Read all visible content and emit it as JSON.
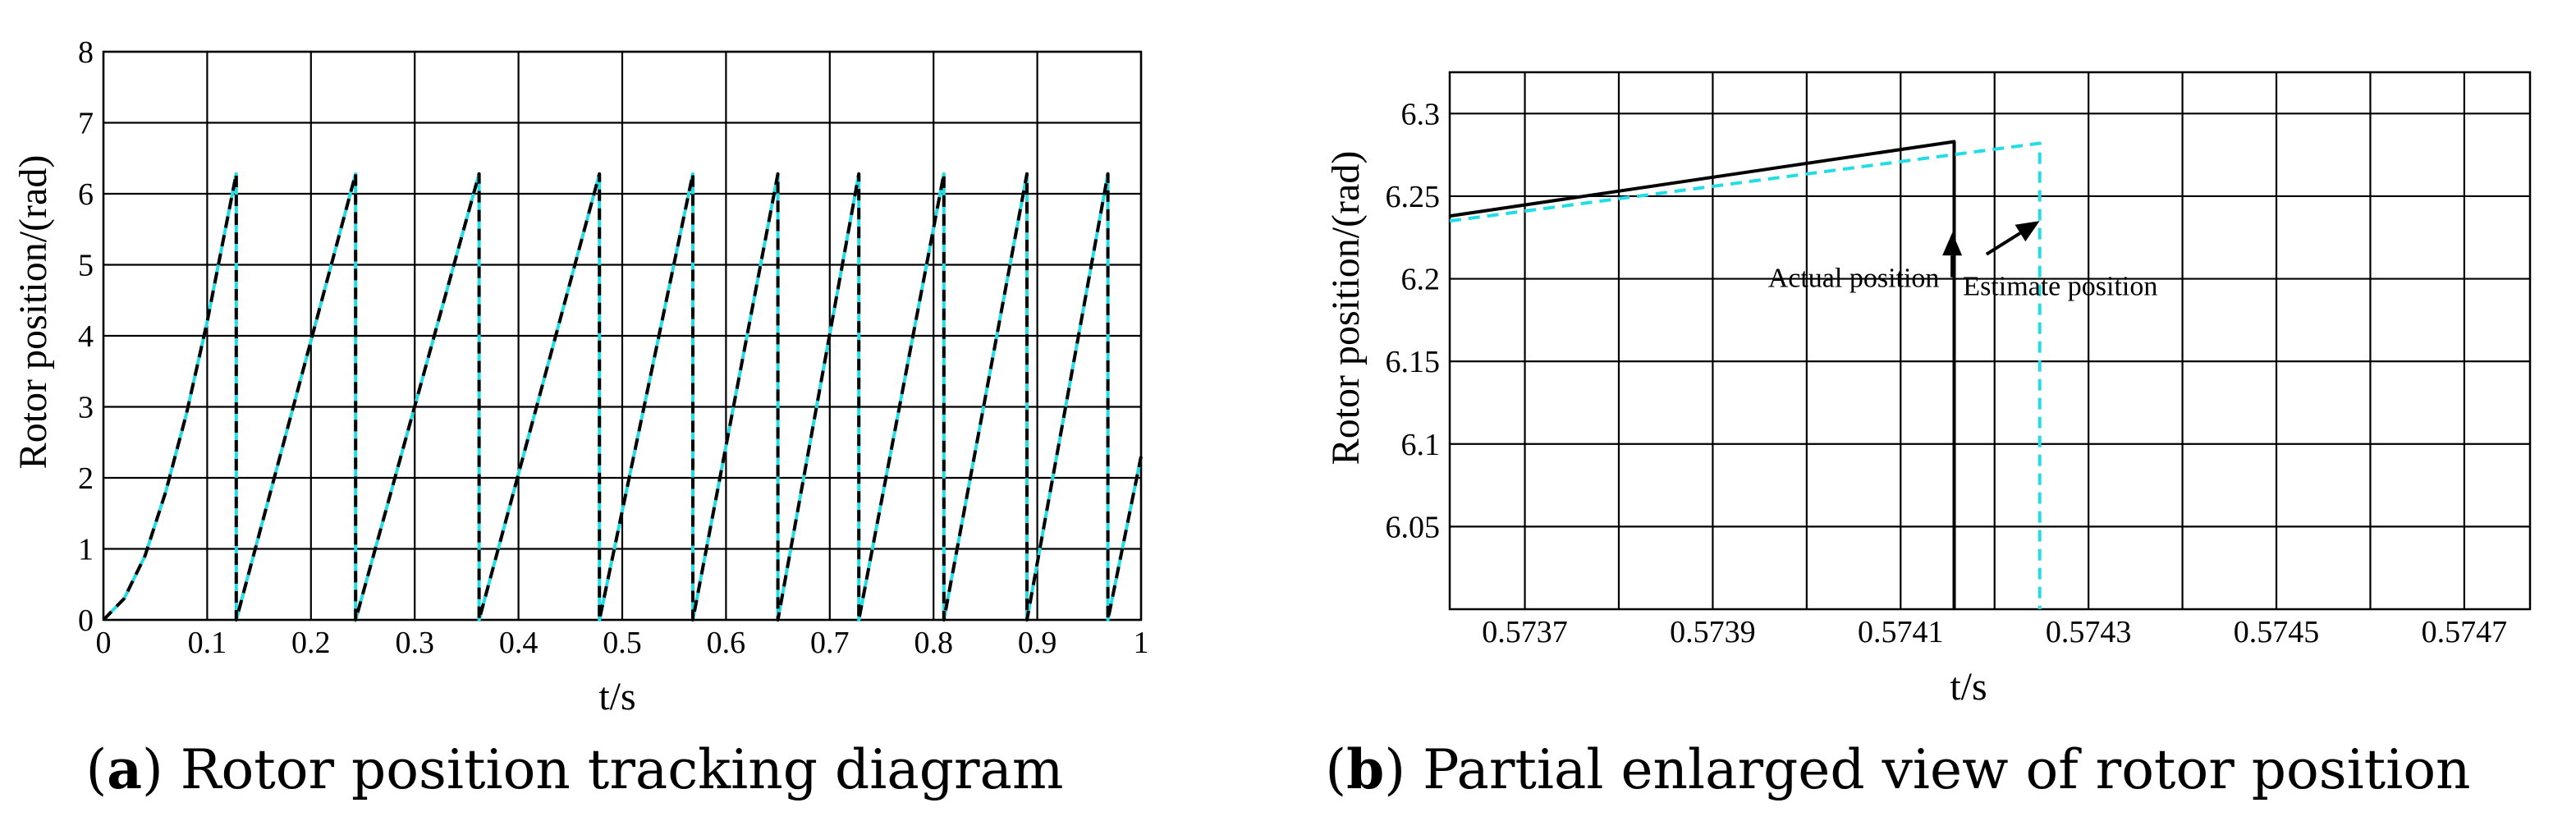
{
  "colors": {
    "actual": "#000000",
    "estimate": "#22dce6",
    "grid": "#000000"
  },
  "chart_data": [
    {
      "type": "line",
      "id": "a",
      "caption_letter": "a",
      "caption_text": "Rotor position tracking diagram",
      "caption_open": "(",
      "caption_close": ")",
      "xlabel": "t/s",
      "ylabel": "Rotor position/(rad)",
      "xlim": [
        0,
        1
      ],
      "ylim": [
        0,
        8
      ],
      "xticks": [
        0,
        0.1,
        0.2,
        0.3,
        0.4,
        0.5,
        0.6,
        0.7,
        0.8,
        0.9,
        1
      ],
      "xtick_labels": [
        "0",
        "0.1",
        "0.2",
        "0.3",
        "0.4",
        "0.5",
        "0.6",
        "0.7",
        "0.8",
        "0.9",
        "1"
      ],
      "yticks": [
        0,
        1,
        2,
        3,
        4,
        5,
        6,
        7,
        8
      ],
      "ytick_labels": [
        "0",
        "1",
        "2",
        "3",
        "4",
        "5",
        "6",
        "7",
        "8"
      ],
      "grid": true,
      "series": [
        {
          "name": "Estimate position",
          "style": "solid",
          "points": [
            [
              0,
              0
            ],
            [
              0.02,
              0.3
            ],
            [
              0.04,
              0.9
            ],
            [
              0.06,
              1.8
            ],
            [
              0.08,
              2.9
            ],
            [
              0.1,
              4.2
            ],
            [
              0.128,
              6.28
            ],
            [
              0.128,
              0
            ],
            [
              0.243,
              6.28
            ],
            [
              0.243,
              0
            ],
            [
              0.362,
              6.28
            ],
            [
              0.362,
              0
            ],
            [
              0.478,
              6.28
            ],
            [
              0.478,
              0
            ],
            [
              0.568,
              6.28
            ],
            [
              0.568,
              0
            ],
            [
              0.65,
              6.28
            ],
            [
              0.65,
              0
            ],
            [
              0.728,
              6.28
            ],
            [
              0.728,
              0
            ],
            [
              0.81,
              6.28
            ],
            [
              0.81,
              0
            ],
            [
              0.89,
              6.28
            ],
            [
              0.89,
              0
            ],
            [
              0.968,
              6.28
            ],
            [
              0.968,
              0
            ],
            [
              1.0,
              2.3
            ]
          ]
        },
        {
          "name": "Actual position",
          "style": "dashed",
          "points": [
            [
              0,
              0
            ],
            [
              0.02,
              0.3
            ],
            [
              0.04,
              0.9
            ],
            [
              0.06,
              1.8
            ],
            [
              0.08,
              2.9
            ],
            [
              0.1,
              4.2
            ],
            [
              0.128,
              6.28
            ],
            [
              0.128,
              0
            ],
            [
              0.243,
              6.28
            ],
            [
              0.243,
              0
            ],
            [
              0.362,
              6.28
            ],
            [
              0.362,
              0
            ],
            [
              0.478,
              6.28
            ],
            [
              0.478,
              0
            ],
            [
              0.568,
              6.28
            ],
            [
              0.568,
              0
            ],
            [
              0.65,
              6.28
            ],
            [
              0.65,
              0
            ],
            [
              0.728,
              6.28
            ],
            [
              0.728,
              0
            ],
            [
              0.81,
              6.28
            ],
            [
              0.81,
              0
            ],
            [
              0.89,
              6.28
            ],
            [
              0.89,
              0
            ],
            [
              0.968,
              6.28
            ],
            [
              0.968,
              0
            ],
            [
              1.0,
              2.3
            ]
          ]
        }
      ]
    },
    {
      "type": "line",
      "id": "b",
      "caption_letter": "b",
      "caption_text": "Partial enlarged view of rotor position",
      "caption_open": "(",
      "caption_close": ")",
      "xlabel": "t/s",
      "ylabel": "Rotor position/(rad)",
      "xlim": [
        0.57362,
        0.57477
      ],
      "ylim": [
        6.0,
        6.325
      ],
      "xticks": [
        0.5737,
        0.5738,
        0.5739,
        0.574,
        0.5741,
        0.5742,
        0.5743,
        0.5744,
        0.5745,
        0.5746,
        0.5747
      ],
      "xtick_labels": [
        "0.5737",
        "",
        "0.5739",
        "",
        "0.5741",
        "",
        "0.5743",
        "",
        "0.5745",
        "",
        "0.5747"
      ],
      "yticks": [
        6.05,
        6.1,
        6.15,
        6.2,
        6.25,
        6.3
      ],
      "ytick_labels": [
        "6.05",
        "6.1",
        "6.15",
        "6.2",
        "6.25",
        "6.3"
      ],
      "grid": true,
      "series": [
        {
          "name": "Actual position",
          "style": "solid",
          "points": [
            [
              0.57362,
              6.238
            ],
            [
              0.574157,
              6.283
            ],
            [
              0.574157,
              6.0
            ]
          ]
        },
        {
          "name": "Estimate position",
          "style": "dashed",
          "points": [
            [
              0.57362,
              6.235
            ],
            [
              0.574248,
              6.282
            ],
            [
              0.574248,
              6.0
            ]
          ]
        }
      ],
      "annotations": [
        {
          "text": "Actual position",
          "text_x": 0.57405,
          "text_y": 6.195,
          "arrow_to": [
            0.574155,
            6.228
          ]
        },
        {
          "text": "Estimate position",
          "text_x": 0.57427,
          "text_y": 6.19,
          "arrow_to": [
            0.574248,
            6.235
          ]
        }
      ]
    }
  ]
}
